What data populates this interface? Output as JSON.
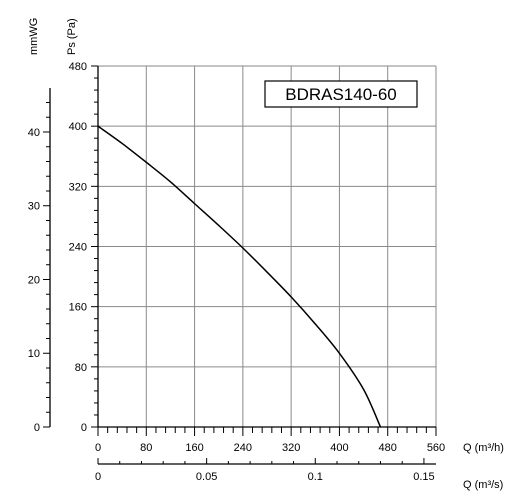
{
  "chart_data": {
    "type": "line",
    "title": "",
    "model_label": "BDRAS140-60",
    "x_axis": {
      "label": "Q (m³/h)",
      "range": [
        0,
        560
      ],
      "ticks": [
        "0",
        "80",
        "160",
        "240",
        "320",
        "400",
        "480",
        "560"
      ]
    },
    "x2_axis": {
      "label": "Q (m³/s)",
      "ticks": [
        {
          "value": 0,
          "label": "0"
        },
        {
          "value": 0.05,
          "label": "0.05"
        },
        {
          "value": 0.1,
          "label": "0.1"
        },
        {
          "value": 0.15,
          "label": "0.15"
        }
      ]
    },
    "y_axis": {
      "label": "Ps (Pa)",
      "range": [
        0,
        480
      ],
      "ticks": [
        "0",
        "80",
        "160",
        "240",
        "320",
        "400",
        "480"
      ]
    },
    "y2_axis": {
      "label": "mmWG",
      "ticks": [
        {
          "value": 0,
          "label": "0"
        },
        {
          "value": 10,
          "label": "10"
        },
        {
          "value": 20,
          "label": "20"
        },
        {
          "value": 30,
          "label": "30"
        },
        {
          "value": 40,
          "label": "40"
        }
      ]
    },
    "grid": true,
    "series": [
      {
        "x": [
          0,
          40,
          80,
          120,
          160,
          200,
          240,
          280,
          320,
          360,
          400,
          440,
          468
        ],
        "y": [
          400,
          377,
          352,
          326,
          297,
          268,
          238,
          206,
          173,
          137,
          98,
          50,
          0
        ]
      }
    ]
  }
}
